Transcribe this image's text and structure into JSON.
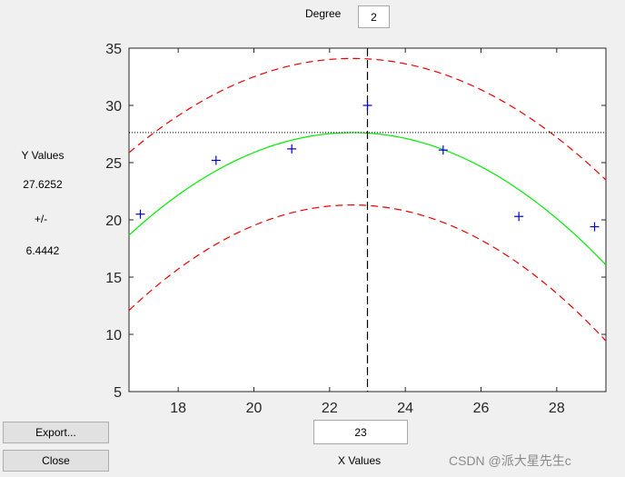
{
  "degree": {
    "label": "Degree",
    "value": "2"
  },
  "side_panel": {
    "y_values_label": "Y Values",
    "y_value": "27.6252",
    "plus_minus": "+/-",
    "ci_value": "6.4442"
  },
  "x_input": {
    "value": "23",
    "label": "X Values"
  },
  "buttons": {
    "export_label": "Export...",
    "close_label": "Close"
  },
  "watermark": "CSDN @派大星先生c",
  "colors": {
    "fit": "#00ee00",
    "bounds": "#ee0000",
    "points": "#0000cc",
    "axis": "#262626",
    "background": "#f0f0f0"
  },
  "chart_data": {
    "type": "scatter",
    "xlim": [
      16.7,
      29.3
    ],
    "ylim": [
      5,
      35
    ],
    "x_ticks": [
      18,
      20,
      22,
      24,
      26,
      28
    ],
    "y_ticks": [
      5,
      10,
      15,
      20,
      25,
      30,
      35
    ],
    "grid": false,
    "points": [
      {
        "x": 17,
        "y": 20.5
      },
      {
        "x": 19,
        "y": 25.2
      },
      {
        "x": 21,
        "y": 26.2
      },
      {
        "x": 23,
        "y": 30.0
      },
      {
        "x": 25,
        "y": 26.1
      },
      {
        "x": 27,
        "y": 20.3
      },
      {
        "x": 29,
        "y": 19.4
      }
    ],
    "fit": {
      "vertex_x": 22.6,
      "vertex_y": 27.6252,
      "a": -0.2575
    },
    "upper_bound": {
      "vertex_x": 22.6,
      "vertex_y": 34.1,
      "a": -0.2364
    },
    "lower_bound": {
      "vertex_x": 22.6,
      "vertex_y": 21.3,
      "a": -0.2645
    },
    "crosshair": {
      "x": 23,
      "y": 27.6252
    }
  }
}
